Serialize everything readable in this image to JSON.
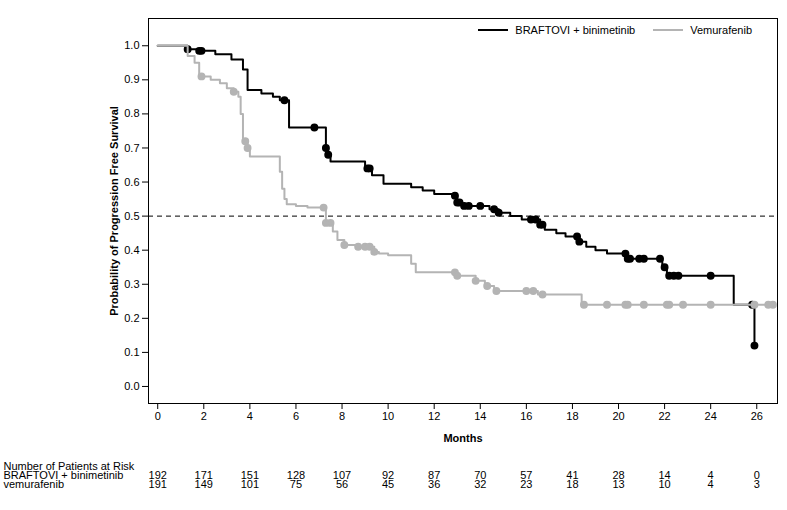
{
  "chart_data": {
    "type": "line",
    "xlabel": "Months",
    "ylabel": "Probability of Progression Free Survival",
    "xlim": [
      -0.4,
      26.9
    ],
    "ylim": [
      -0.05,
      1.08
    ],
    "xticks": [
      0,
      2,
      4,
      6,
      8,
      10,
      12,
      14,
      16,
      18,
      20,
      22,
      24,
      26
    ],
    "yticks": [
      {
        "value": 0,
        "label": "0.0"
      },
      {
        "value": 0.1,
        "label": "0.1"
      },
      {
        "value": 0.2,
        "label": "0.2"
      },
      {
        "value": 0.3,
        "label": "0.3"
      },
      {
        "value": 0.4,
        "label": "0.4"
      },
      {
        "value": 0.5,
        "label": "0.5"
      },
      {
        "value": 0.6,
        "label": "0.6"
      },
      {
        "value": 0.7,
        "label": "0.7"
      },
      {
        "value": 0.8,
        "label": "0.8"
      },
      {
        "value": 0.9,
        "label": "0.9"
      },
      {
        "value": 1,
        "label": "1.0"
      }
    ],
    "grid": false,
    "legend": "top right",
    "reference_lines": [
      {
        "y": 0.5,
        "line_style": "dashed"
      }
    ],
    "series": [
      {
        "name": "BRAFTOVI + binimetinib",
        "color": "#000000",
        "line_style": "solid",
        "marker": "circle",
        "x": [
          0,
          1.3,
          1.8,
          2.5,
          3.2,
          3.7,
          3.9,
          4.5,
          5.0,
          5.3,
          5.7,
          7.3,
          7.4,
          7.5,
          9.0,
          9.3,
          9.8,
          11.0,
          11.5,
          12.0,
          12.8,
          13.0,
          13.2,
          14.4,
          14.8,
          15.3,
          15.8,
          16.6,
          16.8,
          17.3,
          17.7,
          18.3,
          18.6,
          19.0,
          19.5,
          20.4,
          21.9,
          22.1,
          25.0,
          25.9
        ],
        "values": [
          1.0,
          0.99,
          0.985,
          0.975,
          0.96,
          0.93,
          0.87,
          0.86,
          0.85,
          0.84,
          0.76,
          0.7,
          0.68,
          0.66,
          0.64,
          0.62,
          0.595,
          0.585,
          0.575,
          0.565,
          0.56,
          0.54,
          0.53,
          0.52,
          0.51,
          0.5,
          0.49,
          0.475,
          0.46,
          0.45,
          0.44,
          0.425,
          0.41,
          0.4,
          0.39,
          0.375,
          0.35,
          0.325,
          0.24,
          0.12
        ],
        "censored": {
          "x": [
            1.3,
            1.8,
            1.9,
            5.5,
            6.8,
            7.3,
            7.4,
            9.1,
            9.2,
            12.9,
            13.0,
            13.1,
            13.3,
            13.5,
            14.0,
            14.6,
            14.8,
            16.2,
            16.4,
            16.6,
            16.7,
            18.2,
            18.3,
            20.3,
            20.4,
            20.5,
            20.9,
            21.1,
            21.8,
            22.0,
            22.2,
            22.4,
            22.6,
            24.0,
            25.8,
            25.9
          ],
          "values": [
            0.99,
            0.985,
            0.985,
            0.84,
            0.76,
            0.7,
            0.68,
            0.64,
            0.64,
            0.56,
            0.54,
            0.54,
            0.53,
            0.53,
            0.53,
            0.52,
            0.51,
            0.49,
            0.49,
            0.475,
            0.475,
            0.44,
            0.425,
            0.39,
            0.375,
            0.375,
            0.375,
            0.375,
            0.375,
            0.35,
            0.325,
            0.325,
            0.325,
            0.325,
            0.24,
            0.12
          ]
        }
      },
      {
        "name": "Vemurafenib",
        "color": "#b4b4b4",
        "line_style": "solid",
        "marker": "circle",
        "x": [
          0,
          1.3,
          1.6,
          1.8,
          2.3,
          2.7,
          3.0,
          3.3,
          3.5,
          3.6,
          3.7,
          3.9,
          4.0,
          5.3,
          5.4,
          5.5,
          5.6,
          6.0,
          6.5,
          7.3,
          7.6,
          7.8,
          8.1,
          8.6,
          9.4,
          9.6,
          10.0,
          11.0,
          11.2,
          13.0,
          13.8,
          14.2,
          14.6,
          16.5,
          18.4,
          26.7
        ],
        "values": [
          1.0,
          0.97,
          0.95,
          0.91,
          0.9,
          0.89,
          0.875,
          0.865,
          0.85,
          0.8,
          0.72,
          0.7,
          0.675,
          0.63,
          0.58,
          0.55,
          0.535,
          0.53,
          0.525,
          0.48,
          0.455,
          0.43,
          0.415,
          0.41,
          0.395,
          0.39,
          0.385,
          0.36,
          0.335,
          0.325,
          0.31,
          0.295,
          0.28,
          0.27,
          0.24,
          0.24
        ],
        "censored": {
          "x": [
            1.9,
            3.3,
            3.8,
            3.9,
            7.2,
            7.3,
            7.5,
            8.1,
            8.7,
            9.0,
            9.2,
            9.4,
            12.9,
            13.0,
            13.8,
            14.3,
            14.7,
            16.0,
            16.3,
            16.7,
            18.5,
            19.5,
            20.3,
            20.4,
            21.1,
            22.1,
            22.2,
            22.8,
            24.0,
            25.9,
            26.5,
            26.7
          ],
          "values": [
            0.91,
            0.865,
            0.72,
            0.7,
            0.525,
            0.48,
            0.48,
            0.415,
            0.41,
            0.41,
            0.41,
            0.395,
            0.335,
            0.325,
            0.31,
            0.295,
            0.28,
            0.28,
            0.28,
            0.27,
            0.24,
            0.24,
            0.24,
            0.24,
            0.24,
            0.24,
            0.24,
            0.24,
            0.24,
            0.24,
            0.24,
            0.24
          ]
        }
      }
    ],
    "risk_table": {
      "title": "Number of Patients at Risk",
      "times": [
        0,
        2,
        4,
        6,
        8,
        10,
        12,
        14,
        16,
        18,
        20,
        22,
        24,
        26
      ],
      "rows": [
        {
          "name": "BRAFTOVI + binimetinib",
          "values": [
            192,
            171,
            151,
            128,
            107,
            92,
            87,
            70,
            57,
            41,
            28,
            14,
            4,
            0
          ]
        },
        {
          "name": "vemurafenib",
          "values": [
            191,
            149,
            101,
            75,
            56,
            45,
            36,
            32,
            23,
            18,
            13,
            10,
            4,
            3
          ]
        }
      ]
    }
  }
}
